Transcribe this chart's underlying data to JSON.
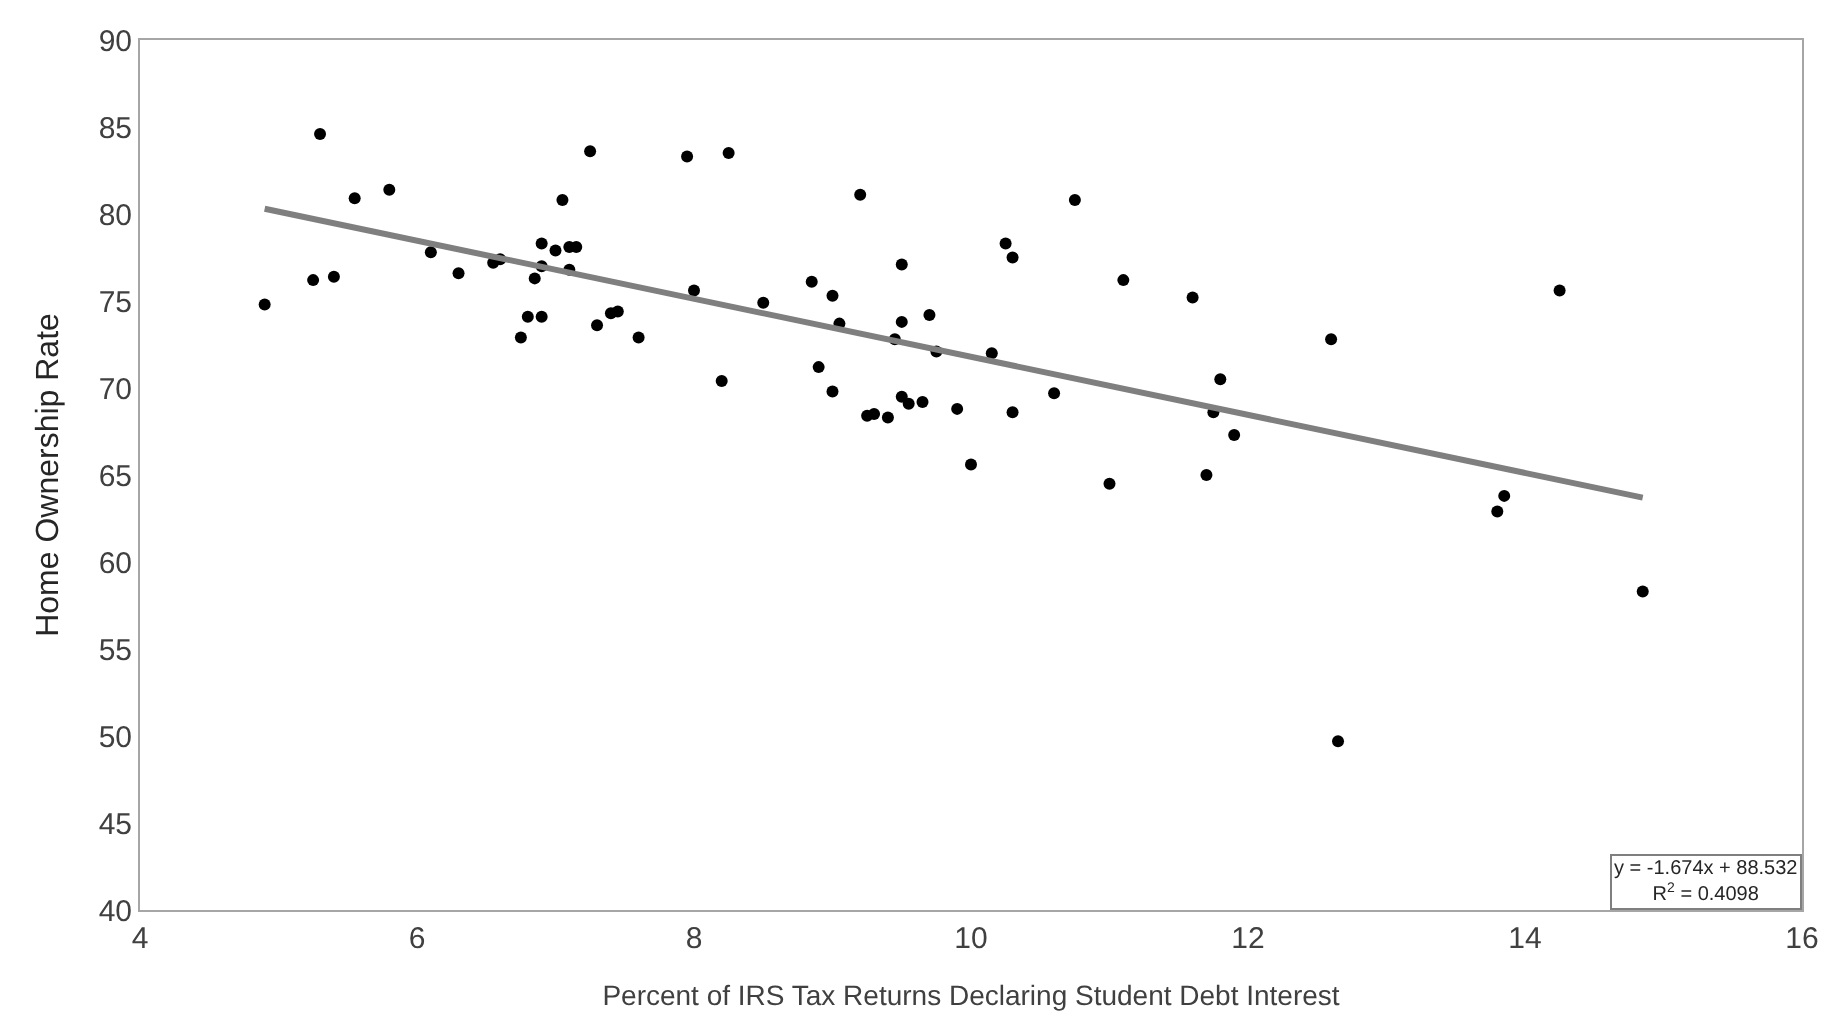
{
  "chart_data": {
    "type": "scatter",
    "xlabel": "Percent of IRS Tax Returns Declaring Student Debt Interest",
    "ylabel": "Home Ownership Rate",
    "xlim": [
      4,
      16
    ],
    "xticks": [
      4,
      6,
      8,
      10,
      12,
      14,
      16
    ],
    "ylim": [
      40,
      90
    ],
    "yticks": [
      40,
      45,
      50,
      55,
      60,
      65,
      70,
      75,
      80,
      85,
      90
    ],
    "series": [
      {
        "marker": "circle",
        "color": "#000000",
        "x": [
          4.9,
          5.25,
          5.3,
          5.4,
          5.55,
          5.8,
          6.1,
          6.3,
          6.55,
          6.6,
          6.75,
          6.8,
          6.85,
          6.9,
          6.9,
          6.9,
          7.0,
          7.05,
          7.1,
          7.15,
          7.1,
          7.25,
          7.3,
          7.4,
          7.45,
          7.6,
          7.95,
          8.0,
          8.2,
          8.25,
          8.5,
          8.85,
          8.9,
          9.0,
          9.0,
          9.05,
          9.2,
          9.25,
          9.3,
          9.4,
          9.45,
          9.5,
          9.5,
          9.5,
          9.55,
          9.65,
          9.7,
          9.75,
          9.9,
          10.0,
          10.15,
          10.25,
          10.3,
          10.3,
          10.6,
          10.75,
          11.0,
          11.1,
          11.6,
          11.7,
          11.75,
          11.8,
          11.9,
          12.6,
          12.65,
          13.8,
          13.85,
          14.25,
          14.85
        ],
        "values": [
          74.8,
          76.2,
          84.6,
          76.4,
          80.9,
          81.4,
          77.8,
          76.6,
          77.2,
          77.4,
          72.9,
          74.1,
          76.3,
          77.0,
          74.1,
          78.3,
          77.9,
          80.8,
          78.1,
          78.1,
          76.8,
          83.6,
          73.6,
          74.3,
          74.4,
          72.9,
          83.3,
          75.6,
          70.4,
          83.5,
          74.9,
          76.1,
          71.2,
          75.3,
          69.8,
          73.7,
          81.1,
          68.4,
          68.5,
          68.3,
          72.8,
          69.5,
          77.1,
          73.8,
          69.1,
          69.2,
          74.2,
          72.1,
          68.8,
          65.6,
          72.0,
          78.3,
          77.5,
          68.6,
          69.7,
          80.8,
          64.5,
          76.2,
          75.2,
          65.0,
          68.6,
          70.5,
          67.3,
          72.8,
          49.7,
          62.9,
          63.8,
          75.6,
          58.3
        ]
      },
      {
        "type": "line",
        "marker": "none",
        "color": "#7f7f7f",
        "x": [
          4.9,
          14.85
        ],
        "values": [
          80.3,
          63.7
        ]
      }
    ],
    "annotations": [
      "y = -1.674x + 88.532",
      "R$^{2}$ = 0.4098"
    ]
  }
}
